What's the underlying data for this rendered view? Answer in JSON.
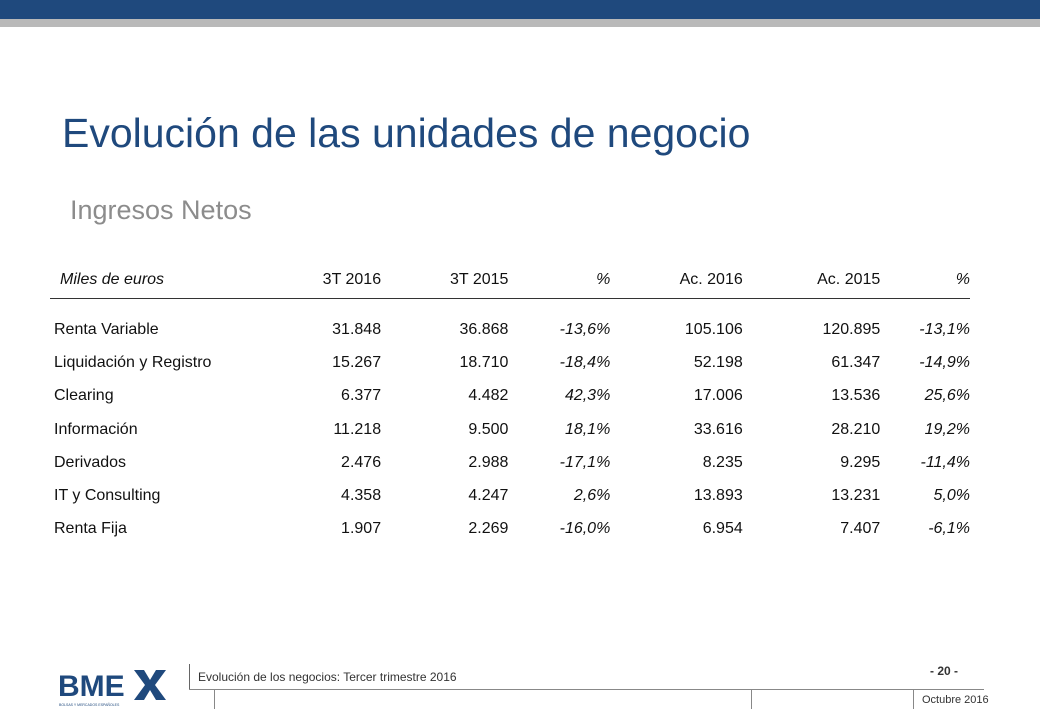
{
  "colors": {
    "brand": "#1f497d",
    "subtitle": "#8c8c8c",
    "grey_band": "#b9b9b9"
  },
  "slide": {
    "title": "Evolución de las unidades de negocio",
    "subtitle": "Ingresos Netos"
  },
  "table": {
    "headers": [
      "Miles de euros",
      "3T 2016",
      "3T 2015",
      "%",
      "Ac. 2016",
      "Ac. 2015",
      "%"
    ],
    "rows": [
      [
        "Renta Variable",
        "31.848",
        "36.868",
        "-13,6%",
        "105.106",
        "120.895",
        "-13,1%"
      ],
      [
        "Liquidación y Registro",
        "15.267",
        "18.710",
        "-18,4%",
        "52.198",
        "61.347",
        "-14,9%"
      ],
      [
        "Clearing",
        "6.377",
        "4.482",
        "42,3%",
        "17.006",
        "13.536",
        "25,6%"
      ],
      [
        "Información",
        "11.218",
        "9.500",
        "18,1%",
        "33.616",
        "28.210",
        "19,2%"
      ],
      [
        "Derivados",
        "2.476",
        "2.988",
        "-17,1%",
        "8.235",
        "9.295",
        "-11,4%"
      ],
      [
        "IT y Consulting",
        "4.358",
        "4.247",
        "2,6%",
        "13.893",
        "13.231",
        "5,0%"
      ],
      [
        "Renta Fija",
        "1.907",
        "2.269",
        "-16,0%",
        "6.954",
        "7.407",
        "-6,1%"
      ]
    ]
  },
  "footer": {
    "logo_icon": "bme-logo",
    "logo_text": "BME",
    "logo_tagline": "BOLSAS Y MERCADOS ESPAÑOLES",
    "section": "Evolución de los negocios: Tercer trimestre 2016",
    "page": "- 20 -",
    "date": "Octubre 2016"
  }
}
